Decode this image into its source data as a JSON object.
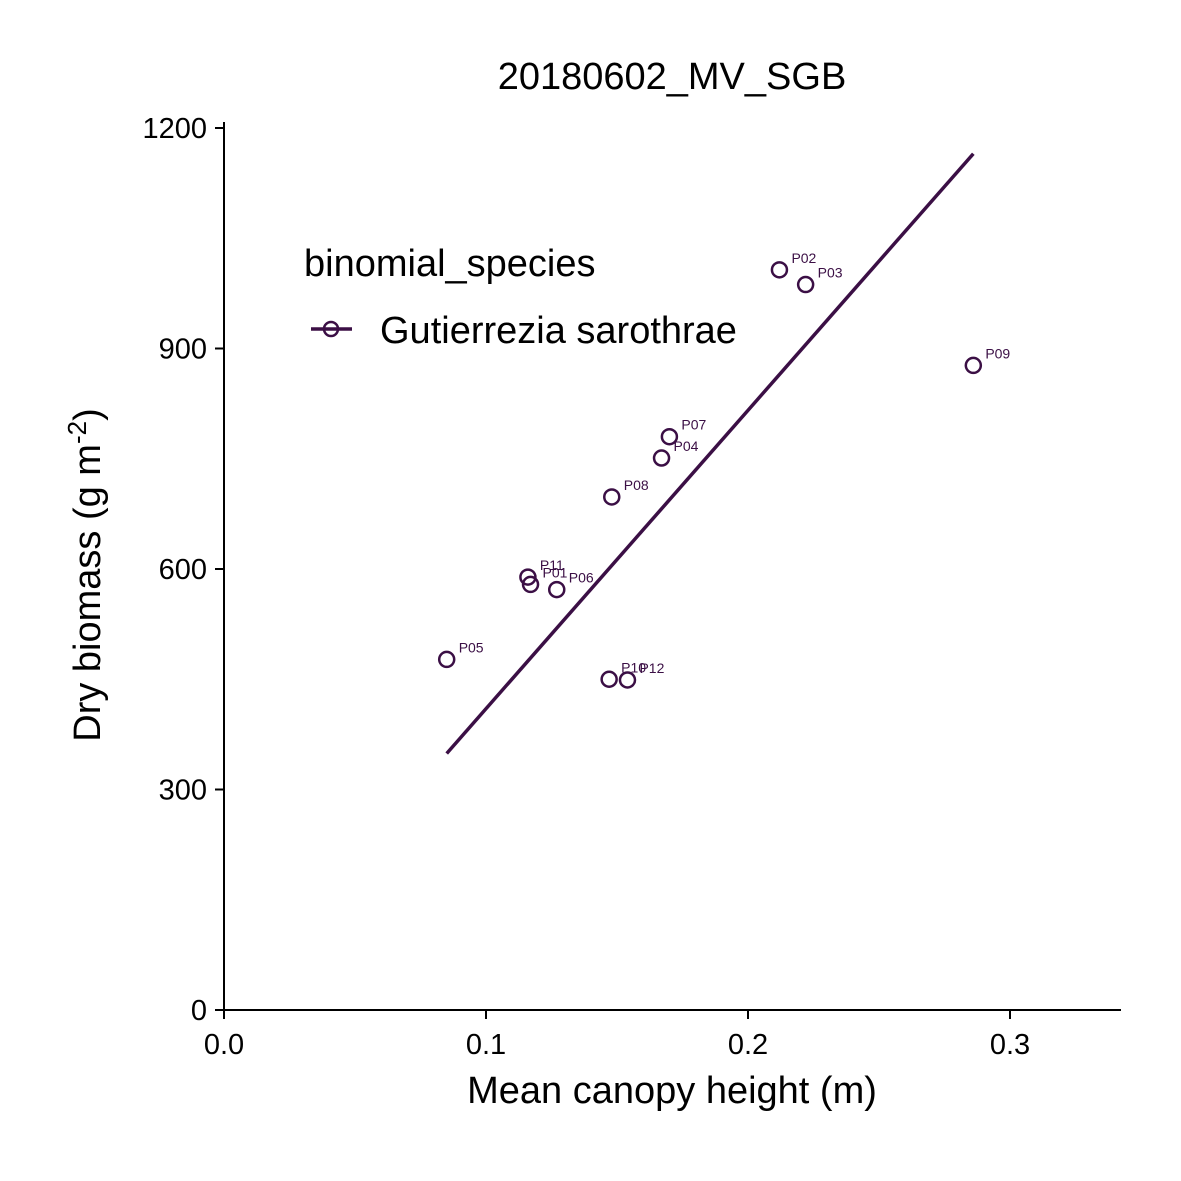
{
  "chart_data": {
    "type": "scatter",
    "title": "20180602_MV_SGB",
    "xlabel": "Mean canopy height (m)",
    "ylabel_main": "Dry biomass (g m",
    "ylabel_sup": "-2",
    "ylabel_close": ")",
    "xlim": [
      0,
      0.343
    ],
    "ylim": [
      0,
      1200
    ],
    "xticks": [
      0.0,
      0.1,
      0.2,
      0.3
    ],
    "xtick_labels": [
      "0.0",
      "0.1",
      "0.2",
      "0.3"
    ],
    "yticks": [
      0,
      300,
      600,
      900,
      1200
    ],
    "ytick_labels": [
      "0",
      "300",
      "600",
      "900",
      "1200"
    ],
    "grid": false,
    "legend": {
      "title": "binomial_species",
      "entries": [
        "Gutierrezia sarothrae"
      ],
      "placement": "top-left"
    },
    "color": "#3b0f45",
    "series": [
      {
        "name": "Gutierrezia sarothrae",
        "points": [
          {
            "label": "P01",
            "x": 0.117,
            "y": 579
          },
          {
            "label": "P02",
            "x": 0.212,
            "y": 1007
          },
          {
            "label": "P03",
            "x": 0.222,
            "y": 987
          },
          {
            "label": "P04",
            "x": 0.167,
            "y": 751
          },
          {
            "label": "P05",
            "x": 0.085,
            "y": 477
          },
          {
            "label": "P06",
            "x": 0.127,
            "y": 572
          },
          {
            "label": "P07",
            "x": 0.17,
            "y": 780
          },
          {
            "label": "P08",
            "x": 0.148,
            "y": 698
          },
          {
            "label": "P09",
            "x": 0.286,
            "y": 877
          },
          {
            "label": "P10",
            "x": 0.147,
            "y": 450
          },
          {
            "label": "P11",
            "x": 0.116,
            "y": 589
          },
          {
            "label": "P12",
            "x": 0.154,
            "y": 449
          }
        ],
        "fit_line": {
          "x": [
            0.085,
            0.286
          ],
          "y": [
            349,
            1165
          ]
        }
      }
    ]
  }
}
